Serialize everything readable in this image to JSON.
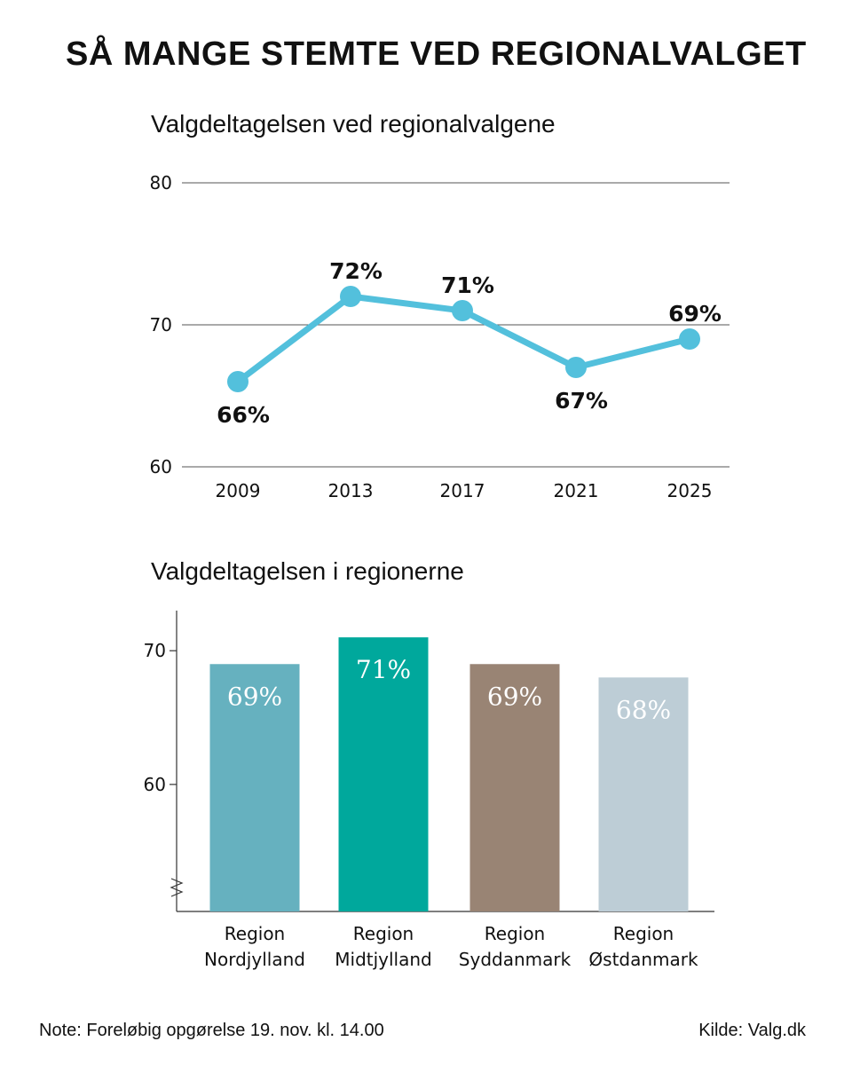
{
  "title": "SÅ MANGE STEMTE VED REGIONALVALGET",
  "note": "Note: Foreløbig opgørelse 19. nov. kl. 14.00",
  "source": "Kilde: Valg.dk",
  "chart_data": [
    {
      "type": "line",
      "title": "Valgdeltagelsen ved regionalvalgene",
      "x": [
        "2009",
        "2013",
        "2017",
        "2021",
        "2025"
      ],
      "values": [
        66,
        72,
        71,
        67,
        69
      ],
      "point_labels": [
        "66%",
        "72%",
        "71%",
        "67%",
        "69%"
      ],
      "label_position": [
        "below",
        "above",
        "above",
        "below",
        "above"
      ],
      "yticks": [
        60,
        70,
        80
      ],
      "ylim": [
        60,
        80
      ],
      "grid": true,
      "color": "#53c0dc"
    },
    {
      "type": "bar",
      "title": "Valgdeltagelsen i regionerne",
      "categories": [
        [
          "Region",
          "Nordjylland"
        ],
        [
          "Region",
          "Midtjylland"
        ],
        [
          "Region",
          "Syddanmark"
        ],
        [
          "Region",
          "Østdanmark"
        ]
      ],
      "values": [
        69,
        71,
        69,
        68
      ],
      "value_labels": [
        "69%",
        "71%",
        "69%",
        "68%"
      ],
      "colors": [
        "#66b1bf",
        "#00a89c",
        "#998474",
        "#bdcdd6"
      ],
      "yticks": [
        60,
        70
      ],
      "ylim": [
        50.5,
        73
      ],
      "axis_break": true
    }
  ]
}
